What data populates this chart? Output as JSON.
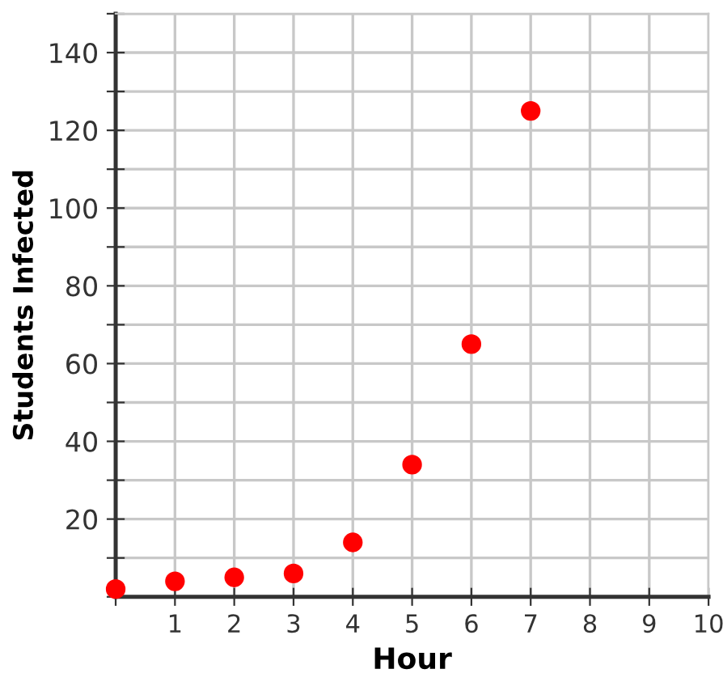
{
  "chart_data": {
    "type": "scatter",
    "xlabel": "Hour",
    "ylabel": "Students Infected",
    "x": [
      0,
      1,
      2,
      3,
      4,
      5,
      6,
      7
    ],
    "series": [
      {
        "color": "#ff0000",
        "values": [
          2,
          4,
          5,
          6,
          14,
          34,
          65,
          125
        ]
      }
    ],
    "xlim": [
      0,
      10
    ],
    "ylim": [
      0,
      150
    ],
    "xticks": [
      {
        "value": 0,
        "label": null
      },
      1,
      2,
      3,
      4,
      5,
      6,
      7,
      8,
      9,
      10
    ],
    "yticks": [
      {
        "value": 0,
        "label": null
      },
      {
        "value": 10,
        "label": null
      },
      20,
      {
        "value": 30,
        "label": null
      },
      40,
      {
        "value": 50,
        "label": null
      },
      60,
      {
        "value": 70,
        "label": null
      },
      80,
      {
        "value": 90,
        "label": null
      },
      100,
      {
        "value": 110,
        "label": null
      },
      120,
      {
        "value": 130,
        "label": null
      },
      140,
      {
        "value": 150,
        "label": null
      }
    ],
    "grid": true,
    "marker": "circle"
  }
}
